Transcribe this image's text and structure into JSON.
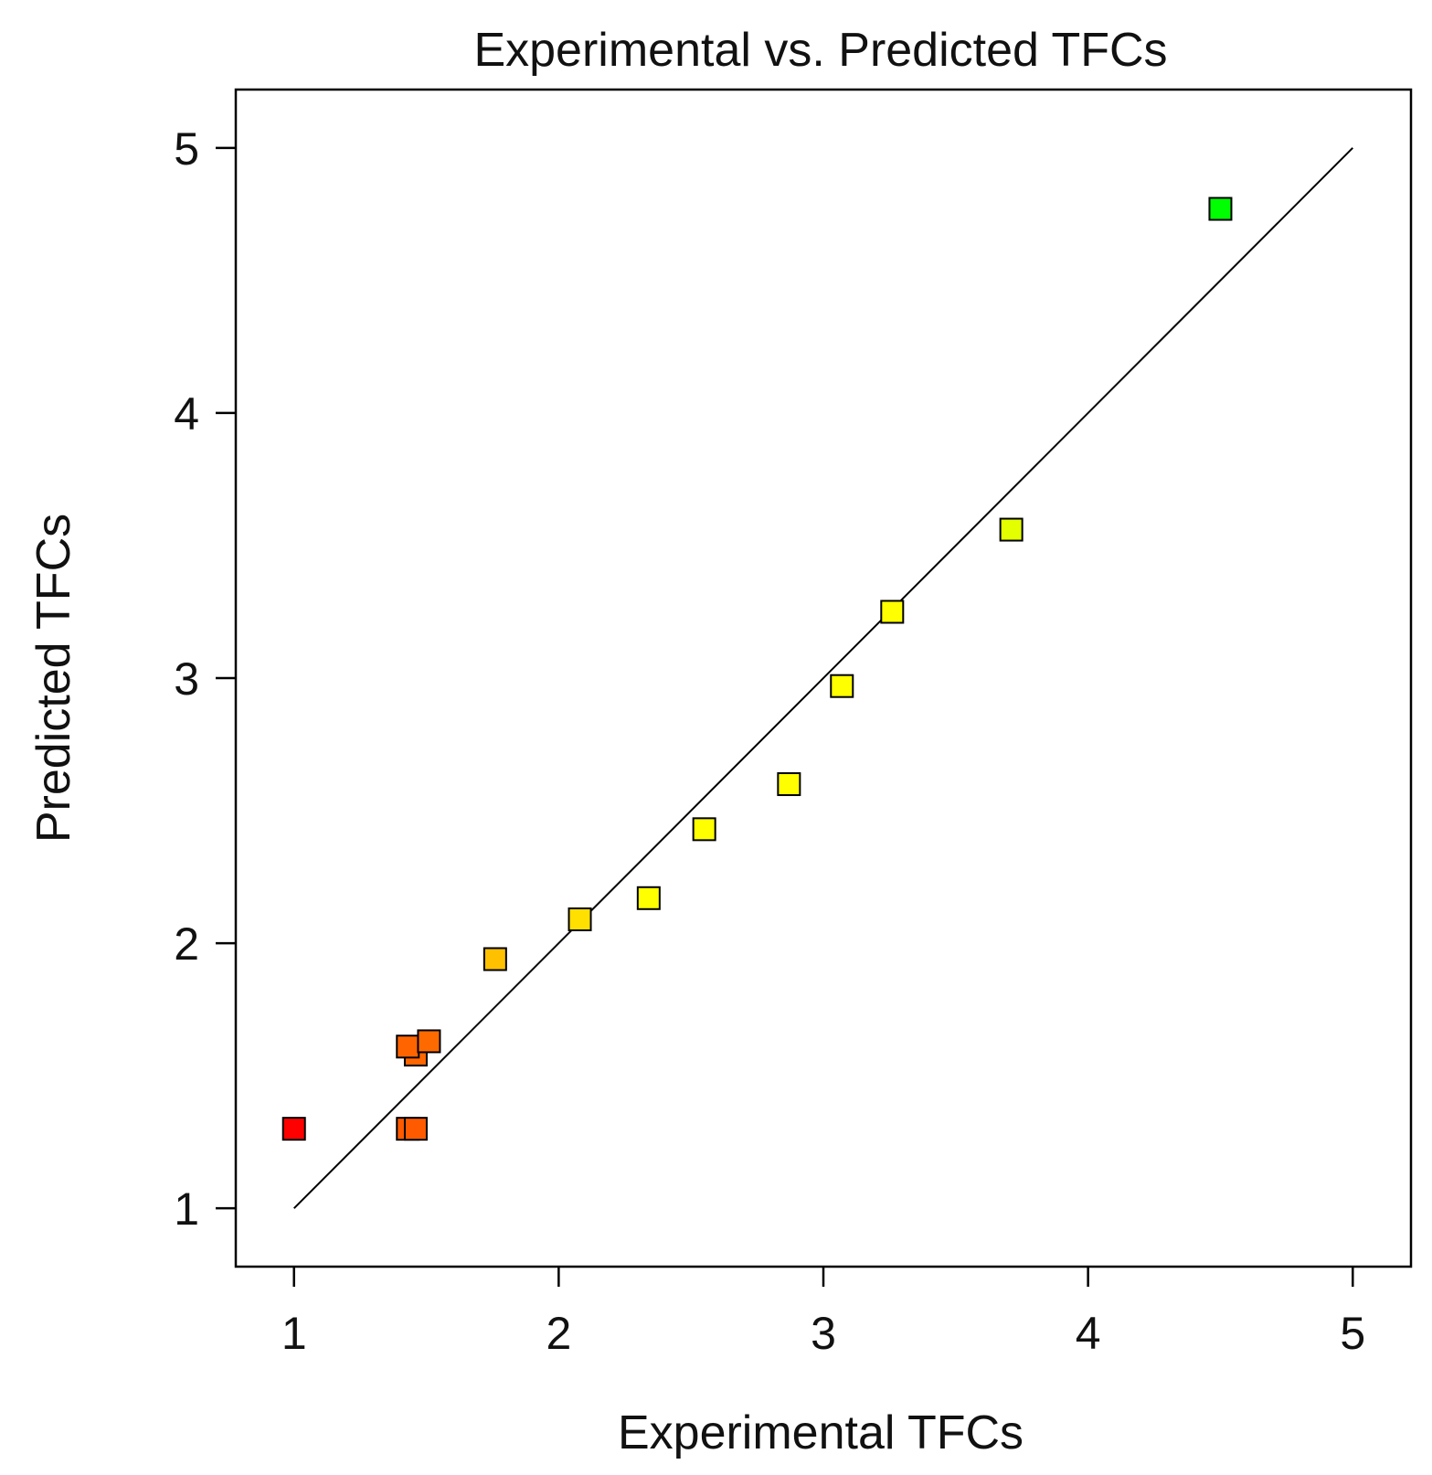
{
  "chart_data": {
    "type": "scatter",
    "title": "Experimental vs. Predicted TFCs",
    "xlabel": "Experimental TFCs",
    "ylabel": "Predicted TFCs",
    "xlim": [
      0.78,
      5.22
    ],
    "ylim": [
      0.78,
      5.22
    ],
    "xticks": [
      1,
      2,
      3,
      4,
      5
    ],
    "yticks": [
      1,
      2,
      3,
      4,
      5
    ],
    "grid": false,
    "reference_line": {
      "from": [
        1,
        1
      ],
      "to": [
        5,
        5
      ],
      "color": "#000000"
    },
    "points": [
      {
        "x": 1.0,
        "y": 1.3,
        "color": "#ff0000"
      },
      {
        "x": 1.43,
        "y": 1.3,
        "color": "#ff5a00"
      },
      {
        "x": 1.46,
        "y": 1.3,
        "color": "#ff5a00"
      },
      {
        "x": 1.46,
        "y": 1.58,
        "color": "#ff6600"
      },
      {
        "x": 1.43,
        "y": 1.61,
        "color": "#ff6400"
      },
      {
        "x": 1.51,
        "y": 1.63,
        "color": "#ff6a00"
      },
      {
        "x": 1.76,
        "y": 1.94,
        "color": "#ffc000"
      },
      {
        "x": 2.08,
        "y": 2.09,
        "color": "#ffe000"
      },
      {
        "x": 2.34,
        "y": 2.17,
        "color": "#ffff00"
      },
      {
        "x": 2.55,
        "y": 2.43,
        "color": "#ffff00"
      },
      {
        "x": 2.87,
        "y": 2.6,
        "color": "#ffff00"
      },
      {
        "x": 3.07,
        "y": 2.97,
        "color": "#ffff00"
      },
      {
        "x": 3.26,
        "y": 3.25,
        "color": "#ffff00"
      },
      {
        "x": 3.71,
        "y": 3.56,
        "color": "#e4ff00"
      },
      {
        "x": 4.5,
        "y": 4.77,
        "color": "#00ff00"
      }
    ]
  }
}
